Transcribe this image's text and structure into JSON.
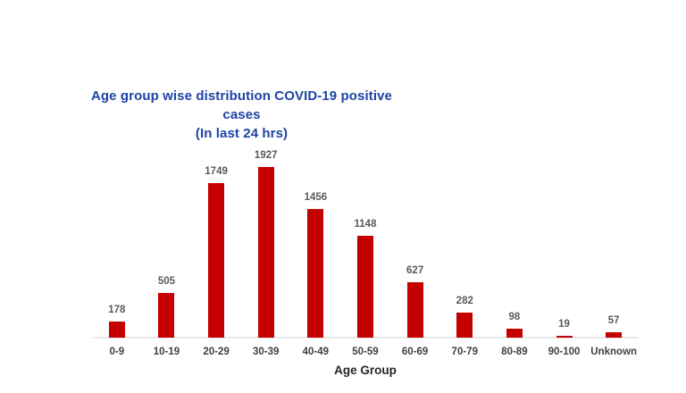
{
  "chart": {
    "title_line1": "Age group wise distribution COVID-19 positive cases",
    "title_line2": "(In last 24 hrs)",
    "xlabel": "Age Group"
  },
  "chart_data": {
    "type": "bar",
    "title": "Age group wise distribution COVID-19 positive cases (In last 24 hrs)",
    "title_line1": "Age group wise distribution COVID-19 positive cases",
    "title_line2": "(In last 24 hrs)",
    "categories": [
      "0-9",
      "10-19",
      "20-29",
      "30-39",
      "40-49",
      "50-59",
      "60-69",
      "70-79",
      "80-89",
      "90-100",
      "Unknown"
    ],
    "values": [
      178,
      505,
      1749,
      1927,
      1456,
      1148,
      627,
      282,
      98,
      19,
      57
    ],
    "xlabel": "Age Group",
    "ylabel": "",
    "ylim": [
      0,
      1927
    ],
    "grid": false,
    "legend": false,
    "value_labels_shown": true,
    "colors": {
      "bar": "#C40000",
      "title": "#1E44A5",
      "value_label": "#595959",
      "tick_label": "#404040",
      "axis_title": "#262626",
      "axis_line": "#E9E9E9",
      "background": "#FFFFFF"
    }
  }
}
